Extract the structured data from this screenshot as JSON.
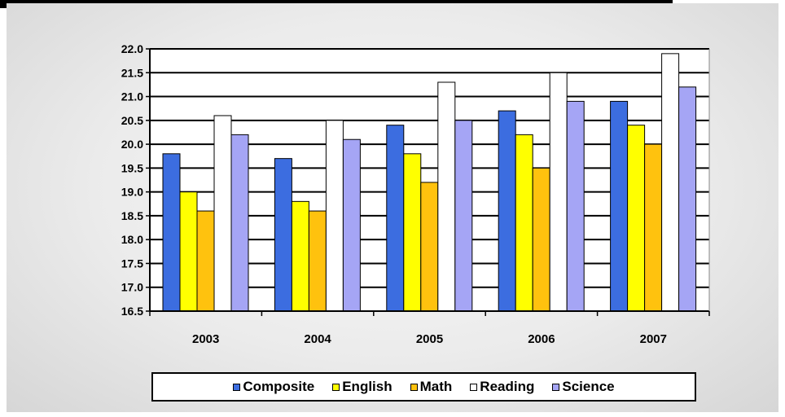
{
  "chart_data": {
    "type": "bar",
    "categories": [
      "2003",
      "2004",
      "2005",
      "2006",
      "2007"
    ],
    "series": [
      {
        "name": "Composite",
        "color": "#3c6de0",
        "values": [
          19.8,
          19.7,
          20.4,
          20.7,
          20.9
        ]
      },
      {
        "name": "English",
        "color": "#ffff00",
        "values": [
          19.0,
          18.8,
          19.8,
          20.2,
          20.4
        ]
      },
      {
        "name": "Math",
        "color": "#ffc20e",
        "values": [
          18.6,
          18.6,
          19.2,
          19.5,
          20.0
        ]
      },
      {
        "name": "Reading",
        "color": "#ffffff",
        "values": [
          20.6,
          20.5,
          21.3,
          21.5,
          21.9
        ]
      },
      {
        "name": "Science",
        "color": "#a5a5f5",
        "values": [
          20.2,
          20.1,
          20.5,
          20.9,
          21.2
        ]
      }
    ],
    "yticks": [
      "16.5",
      "17.0",
      "17.5",
      "18.0",
      "18.5",
      "19.0",
      "19.5",
      "20.0",
      "20.5",
      "21.0",
      "21.5",
      "22.0"
    ],
    "ylim": [
      16.5,
      22.0
    ],
    "title": "",
    "xlabel": "",
    "ylabel": "",
    "grid": true,
    "legend_position": "bottom"
  }
}
